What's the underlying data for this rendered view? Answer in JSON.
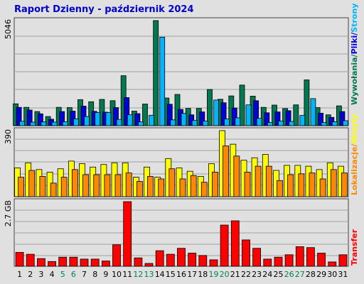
{
  "title": "Raport Dzienny -  październik 2024",
  "chart_data": [
    {
      "type": "bar",
      "title": "Raport Dzienny -  październik 2024",
      "panel": "top",
      "categories": [
        "1",
        "2",
        "3",
        "4",
        "5",
        "6",
        "7",
        "8",
        "9",
        "10",
        "11",
        "12",
        "13",
        "14",
        "15",
        "16",
        "17",
        "18",
        "19",
        "20",
        "21",
        "22",
        "23",
        "24",
        "25",
        "26",
        "27",
        "28",
        "29",
        "30",
        "31"
      ],
      "weekend_days": [
        "5",
        "6",
        "12",
        "13",
        "19",
        "20",
        "26",
        "27"
      ],
      "y_tick_label": "5046",
      "ylim": [
        0,
        5046
      ],
      "grid": true,
      "series": [
        {
          "name": "Wywołania",
          "color": "#007850",
          "values": [
            1050,
            880,
            680,
            440,
            880,
            870,
            1250,
            1150,
            1260,
            1200,
            2400,
            700,
            1040,
            5046,
            1330,
            1500,
            830,
            830,
            1740,
            1270,
            1430,
            1950,
            1420,
            880,
            990,
            820,
            1000,
            2200,
            870,
            520,
            950
          ]
        },
        {
          "name": "Pliki",
          "color": "#0000d8",
          "values": [
            880,
            750,
            570,
            310,
            680,
            700,
            940,
            690,
            650,
            870,
            1350,
            580,
            0,
            0,
            1030,
            780,
            520,
            660,
            0,
            1100,
            850,
            0,
            1200,
            620,
            660,
            720,
            0,
            0,
            600,
            400,
            680
          ]
        },
        {
          "name": "Strony",
          "color": "#00b4ff",
          "values": [
            210,
            170,
            180,
            170,
            190,
            330,
            440,
            630,
            630,
            300,
            520,
            180,
            500,
            4250,
            280,
            590,
            250,
            220,
            1230,
            320,
            380,
            1000,
            350,
            150,
            220,
            200,
            490,
            1300,
            150,
            190,
            240
          ]
        }
      ],
      "legend": [
        "Wywołania",
        "Pliki",
        "Strony"
      ],
      "legend_position": "right, vertical"
    },
    {
      "type": "bar",
      "panel": "middle",
      "categories": [
        "1",
        "2",
        "3",
        "4",
        "5",
        "6",
        "7",
        "8",
        "9",
        "10",
        "11",
        "12",
        "13",
        "14",
        "15",
        "16",
        "17",
        "18",
        "19",
        "20",
        "21",
        "22",
        "23",
        "24",
        "25",
        "26",
        "27",
        "28",
        "29",
        "30",
        "31"
      ],
      "y_tick_label": "390",
      "ylim": [
        0,
        390
      ],
      "grid": true,
      "series": [
        {
          "name": "Wizyty",
          "color": "#ffff00",
          "values": [
            170,
            200,
            160,
            145,
            165,
            210,
            195,
            175,
            190,
            200,
            200,
            115,
            175,
            115,
            225,
            170,
            150,
            120,
            195,
            390,
            310,
            215,
            230,
            250,
            155,
            185,
            185,
            180,
            160,
            200,
            180
          ]
        },
        {
          "name": "Lokalizacje",
          "color": "#ff8800",
          "values": [
            115,
            155,
            120,
            80,
            115,
            160,
            130,
            130,
            130,
            130,
            140,
            90,
            120,
            105,
            165,
            105,
            125,
            85,
            145,
            300,
            240,
            145,
            180,
            180,
            95,
            130,
            135,
            140,
            105,
            160,
            140
          ]
        }
      ],
      "legend": [
        "Wizyty",
        "Lokalizacje"
      ],
      "legend_position": "right, vertical"
    },
    {
      "type": "bar",
      "panel": "bottom",
      "categories": [
        "1",
        "2",
        "3",
        "4",
        "5",
        "6",
        "7",
        "8",
        "9",
        "10",
        "11",
        "12",
        "13",
        "14",
        "15",
        "16",
        "17",
        "18",
        "19",
        "20",
        "21",
        "22",
        "23",
        "24",
        "25",
        "26",
        "27",
        "28",
        "29",
        "30",
        "31"
      ],
      "y_tick_label": "2.7 GB",
      "ylim": [
        0,
        2.7
      ],
      "grid": true,
      "series": [
        {
          "name": "Transfer",
          "color": "#ff0000",
          "values": [
            0.58,
            0.5,
            0.32,
            0.2,
            0.38,
            0.38,
            0.3,
            0.3,
            0.22,
            0.9,
            2.7,
            0.35,
            0.12,
            0.65,
            0.5,
            0.75,
            0.55,
            0.45,
            0.27,
            1.72,
            1.9,
            1.1,
            0.75,
            0.3,
            0.38,
            0.48,
            0.82,
            0.78,
            0.55,
            0.18,
            0.48
          ]
        }
      ],
      "legend": [
        "Transfer"
      ],
      "legend_position": "right, vertical"
    }
  ]
}
